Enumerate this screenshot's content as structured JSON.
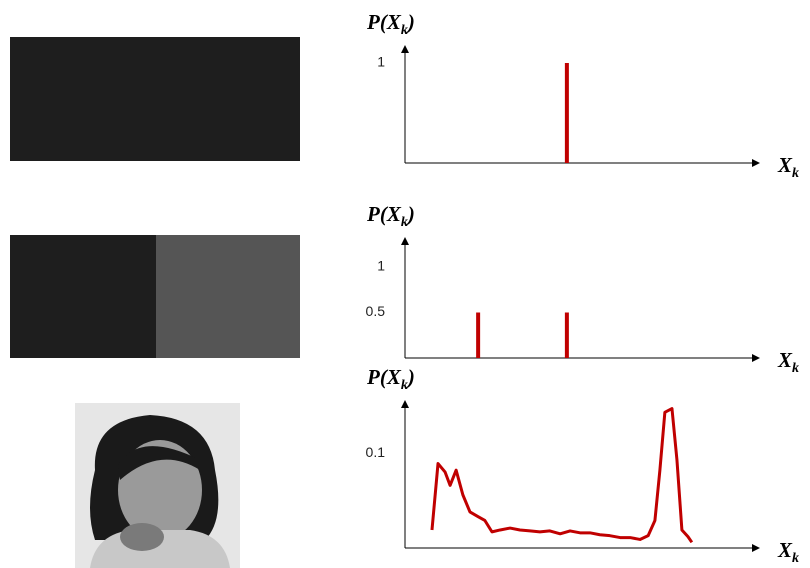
{
  "chart_data": [
    {
      "type": "bar",
      "ylabel": [
        "P(X",
        "k",
        ")"
      ],
      "xlabel": [
        "X",
        "k"
      ],
      "x": [
        45.6
      ],
      "values": [
        1
      ],
      "xlim": [
        0,
        100
      ],
      "ylim": [
        0,
        1.18
      ],
      "yticks": [
        1
      ],
      "color": "#c00000"
    },
    {
      "type": "bar",
      "ylabel": [
        "P(X",
        "k",
        ")"
      ],
      "xlabel": [
        "X",
        "k"
      ],
      "x": [
        20.6,
        45.6
      ],
      "values": [
        0.5,
        0.5
      ],
      "xlim": [
        0,
        100
      ],
      "ylim": [
        0,
        1.33
      ],
      "yticks": [
        0.5,
        1
      ],
      "color": "#c00000"
    },
    {
      "type": "line",
      "ylabel": [
        "P(X",
        "k",
        ")"
      ],
      "xlabel": [
        "X",
        "k"
      ],
      "x": [
        7.6,
        9.3,
        11.3,
        12.7,
        14.4,
        16.3,
        18.3,
        20.6,
        22.5,
        24.5,
        26.8,
        29.6,
        32.4,
        35.2,
        38.0,
        40.8,
        43.7,
        46.5,
        49.3,
        52.1,
        54.9,
        57.7,
        60.6,
        63.4,
        66.2,
        68.5,
        70.4,
        71.8,
        73.2,
        75.2,
        76.6,
        78.0,
        79.7,
        80.8
      ],
      "values": [
        0.019,
        0.089,
        0.08,
        0.066,
        0.082,
        0.056,
        0.038,
        0.033,
        0.029,
        0.017,
        0.019,
        0.021,
        0.019,
        0.018,
        0.017,
        0.018,
        0.015,
        0.018,
        0.016,
        0.016,
        0.014,
        0.013,
        0.011,
        0.011,
        0.009,
        0.013,
        0.029,
        0.082,
        0.143,
        0.147,
        0.093,
        0.019,
        0.012,
        0.006
      ],
      "xlim": [
        0,
        100
      ],
      "ylim": [
        0,
        0.156
      ],
      "yticks": [
        0.1
      ],
      "color": "#c00000"
    }
  ]
}
